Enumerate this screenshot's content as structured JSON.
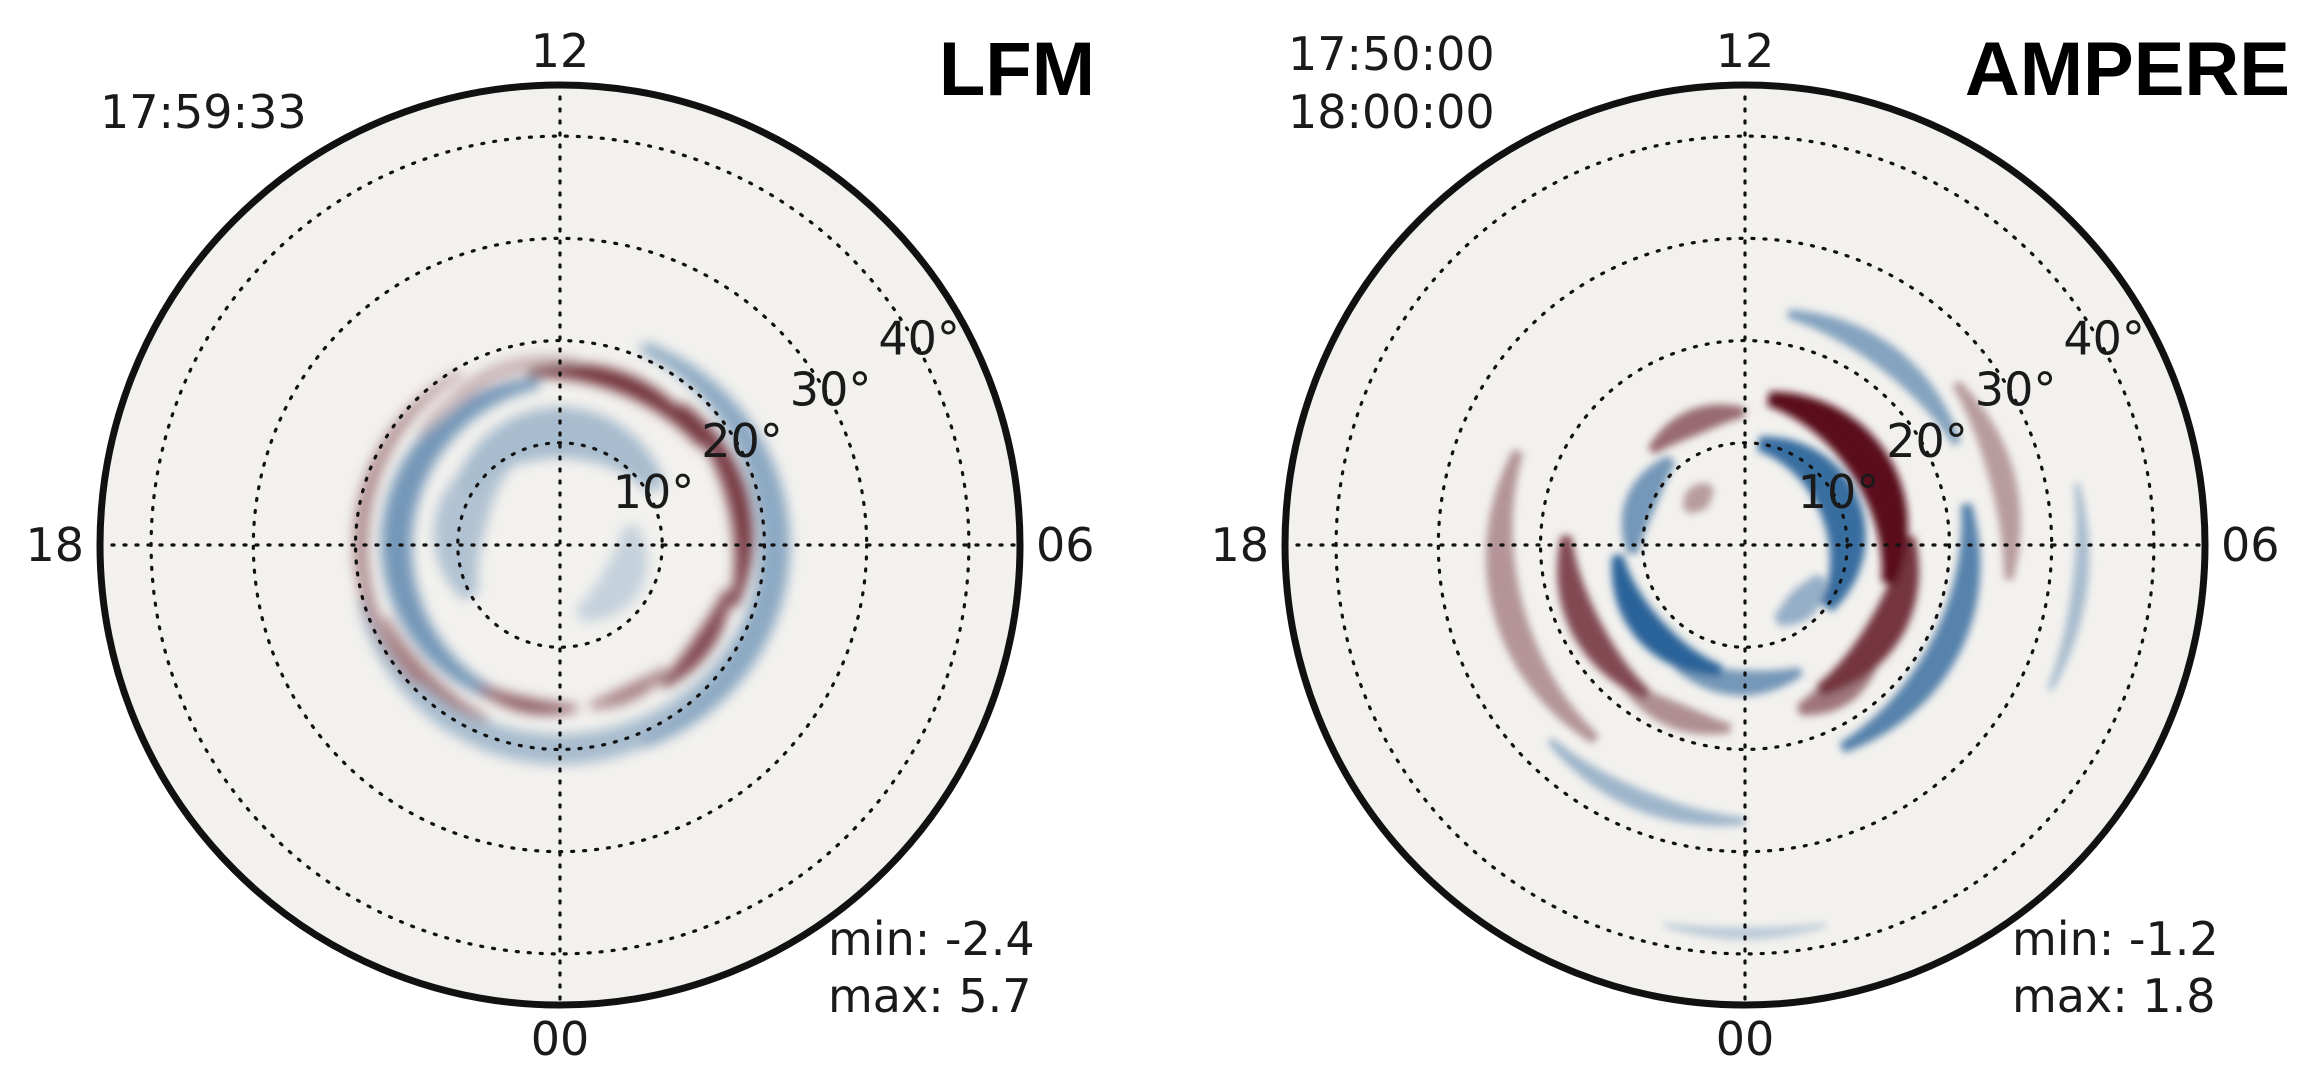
{
  "figure": {
    "background": "#f2f1ee",
    "colormap": {
      "negative": "#1e5a94",
      "neutral": "#f2f1ee",
      "positive": "#5a0f1c"
    },
    "colatitude_rings_deg": [
      10,
      20,
      30,
      40
    ],
    "ring_labels": [
      "10°",
      "20°",
      "30°",
      "40°"
    ],
    "mlt_labels": {
      "top": "12",
      "bottom": "00",
      "left": "18",
      "right": "06"
    }
  },
  "chart_data": [
    {
      "type": "heatmap",
      "projection": "polar",
      "title": "LFM",
      "timestamps": [
        "17:59:33"
      ],
      "min_label": "min: -2.4",
      "max_label": "max: 5.7",
      "vmin": -2.4,
      "vmax": 5.7,
      "rlim": [
        0,
        45
      ],
      "grid": true,
      "features": [
        {
          "center_mlt": 13.5,
          "colat": 17,
          "width_deg": 2.0,
          "half_span_h": 2.2,
          "value": 4.5
        },
        {
          "center_mlt": 17.0,
          "colat": 18,
          "width_deg": 2.2,
          "half_span_h": 2.3,
          "value": 4.2
        },
        {
          "center_mlt": 20.3,
          "colat": 17,
          "width_deg": 2.0,
          "half_span_h": 1.3,
          "value": 3.8
        },
        {
          "center_mlt": 22.3,
          "colat": 16,
          "width_deg": 1.6,
          "half_span_h": 1.0,
          "value": 2.2
        },
        {
          "center_mlt": 0.8,
          "colat": 16,
          "width_deg": 1.5,
          "half_span_h": 1.2,
          "value": 3.2
        },
        {
          "center_mlt": 6.5,
          "colat": 19.5,
          "width_deg": 1.4,
          "half_span_h": 3.5,
          "value": 2.0
        },
        {
          "center_mlt": 3.0,
          "colat": 18.5,
          "width_deg": 1.4,
          "half_span_h": 1.5,
          "value": 2.4
        },
        {
          "center_mlt": 11.0,
          "colat": 18,
          "width_deg": 1.5,
          "half_span_h": 1.4,
          "value": 1.0
        },
        {
          "center_mlt": 9.5,
          "colat": 17.5,
          "width_deg": 1.3,
          "half_span_h": 1.0,
          "value": 0.8
        },
        {
          "center_mlt": 18.0,
          "colat": 21,
          "width_deg": 3.0,
          "half_span_h": 4.5,
          "value": -0.9
        },
        {
          "center_mlt": 6.5,
          "colat": 16,
          "width_deg": 3.0,
          "half_span_h": 5.0,
          "value": -1.2
        },
        {
          "center_mlt": 12.0,
          "colat": 11,
          "width_deg": 5.0,
          "half_span_h": 4.0,
          "value": -0.6
        },
        {
          "center_mlt": 0.0,
          "colat": 20,
          "width_deg": 3.0,
          "half_span_h": 5.0,
          "value": -0.6
        },
        {
          "center_mlt": 7.0,
          "colat": 10,
          "width_deg": 5.0,
          "half_span_h": 3.0,
          "value": -0.5
        },
        {
          "center_mlt": 20.0,
          "colat": 7,
          "width_deg": 4.0,
          "half_span_h": 3.0,
          "value": -0.3
        }
      ]
    },
    {
      "type": "heatmap",
      "projection": "polar",
      "title": "AMPERE",
      "timestamps": [
        "17:50:00",
        "18:00:00"
      ],
      "min_label": "min: -1.2",
      "max_label": "max: 1.8",
      "vmin": -1.2,
      "vmax": 1.8,
      "rlim": [
        0,
        45
      ],
      "grid": true,
      "features": [
        {
          "center_mlt": 15.8,
          "colat": 14.5,
          "width_deg": 4.0,
          "half_span_h": 3.2,
          "value": 1.8
        },
        {
          "center_mlt": 20.0,
          "colat": 16,
          "width_deg": 3.5,
          "half_span_h": 2.2,
          "value": 1.4
        },
        {
          "center_mlt": 21.8,
          "colat": 17,
          "width_deg": 3.0,
          "half_span_h": 1.0,
          "value": 0.8
        },
        {
          "center_mlt": 4.2,
          "colat": 17.5,
          "width_deg": 3.0,
          "half_span_h": 2.0,
          "value": 1.2
        },
        {
          "center_mlt": 10.5,
          "colat": 13,
          "width_deg": 2.5,
          "half_span_h": 1.5,
          "value": 0.9
        },
        {
          "center_mlt": 1.5,
          "colat": 18,
          "width_deg": 2.5,
          "half_span_h": 1.2,
          "value": 0.6
        },
        {
          "center_mlt": 5.0,
          "colat": 24,
          "width_deg": 3.0,
          "half_span_h": 2.5,
          "value": 0.55
        },
        {
          "center_mlt": 17.0,
          "colat": 26,
          "width_deg": 2.5,
          "half_span_h": 1.5,
          "value": 0.5
        },
        {
          "center_mlt": 9.0,
          "colat": 6.5,
          "width_deg": 2.5,
          "half_span_h": 1.0,
          "value": 0.5
        },
        {
          "center_mlt": 16.5,
          "colat": 10,
          "width_deg": 4.0,
          "half_span_h": 4.0,
          "value": -1.0
        },
        {
          "center_mlt": 19.8,
          "colat": 22,
          "width_deg": 3.0,
          "half_span_h": 2.5,
          "value": -0.8
        },
        {
          "center_mlt": 3.2,
          "colat": 12.5,
          "width_deg": 3.0,
          "half_span_h": 2.5,
          "value": -1.1
        },
        {
          "center_mlt": 7.5,
          "colat": 11,
          "width_deg": 3.0,
          "half_span_h": 1.8,
          "value": -0.6
        },
        {
          "center_mlt": 0.2,
          "colat": 13.5,
          "width_deg": 2.5,
          "half_span_h": 1.8,
          "value": -0.6
        },
        {
          "center_mlt": 14.5,
          "colat": 23,
          "width_deg": 2.5,
          "half_span_h": 1.8,
          "value": -0.5
        },
        {
          "center_mlt": 21.0,
          "colat": 8,
          "width_deg": 3.0,
          "half_span_h": 1.5,
          "value": -0.4
        },
        {
          "center_mlt": 1.5,
          "colat": 27,
          "width_deg": 2.0,
          "half_span_h": 1.5,
          "value": -0.35
        },
        {
          "center_mlt": 18.5,
          "colat": 33,
          "width_deg": 1.5,
          "half_span_h": 1.2,
          "value": -0.3
        },
        {
          "center_mlt": 0.0,
          "colat": 38,
          "width_deg": 1.2,
          "half_span_h": 0.8,
          "value": -0.2
        }
      ]
    }
  ]
}
